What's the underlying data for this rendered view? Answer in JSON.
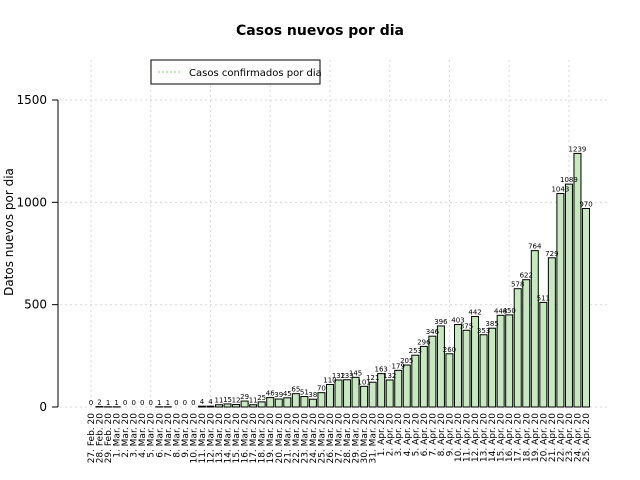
{
  "chart_data": {
    "type": "bar",
    "title": "Casos nuevos por dia",
    "xlabel": "",
    "ylabel": "Datos nuevos por dia",
    "ylim": [
      0,
      1700
    ],
    "yticks": [
      0,
      500,
      1000,
      1500
    ],
    "grid": true,
    "legend": {
      "position": "top-center",
      "entries": [
        "Casos confirmados por dia"
      ]
    },
    "colors": {
      "bar_fill": "#c7e9c0",
      "bar_stroke": "#000000",
      "legend_line": "#a1d99b",
      "grid": "#d9d9d9"
    },
    "categories": [
      "27. Feb. 20",
      "28. Feb. 20",
      "29. Feb. 20",
      "1. Mar. 20",
      "2. Mar. 20",
      "3. Mar. 20",
      "4. Mar. 20",
      "5. Mar. 20",
      "6. Mar. 20",
      "7. Mar. 20",
      "8. Mar. 20",
      "9. Mar. 20",
      "10. Mar. 20",
      "11. Mar. 20",
      "12. Mar. 20",
      "13. Mar. 20",
      "14. Mar. 20",
      "15. Mar. 20",
      "16. Mar. 20",
      "17. Mar. 20",
      "18. Mar. 20",
      "19. Mar. 20",
      "20. Mar. 20",
      "21. Mar. 20",
      "22. Mar. 20",
      "23. Mar. 20",
      "24. Mar. 20",
      "25. Mar. 20",
      "26. Mar. 20",
      "27. Mar. 20",
      "28. Mar. 20",
      "29. Mar. 20",
      "30. Mar. 20",
      "31. Mar. 20",
      "1. Apr. 20",
      "2. Apr. 20",
      "3. Apr. 20",
      "4. Apr. 20",
      "5. Apr. 20",
      "6. Apr. 20",
      "7. Apr. 20",
      "8. Apr. 20",
      "9. Apr. 20",
      "10. Apr. 20",
      "11. Apr. 20",
      "12. Apr. 20",
      "13. Apr. 20",
      "14. Apr. 20",
      "15. Apr. 20",
      "16. Apr. 20",
      "17. Apr. 20",
      "18. Apr. 20",
      "19. Apr. 20",
      "20. Apr. 20",
      "21. Apr. 20",
      "22. Apr. 20",
      "23. Apr. 20",
      "24. Apr. 20",
      "25. Apr. 20"
    ],
    "series": [
      {
        "name": "Casos confirmados por dia",
        "values": [
          0,
          2,
          1,
          1,
          0,
          0,
          0,
          0,
          1,
          1,
          0,
          0,
          0,
          4,
          4,
          11,
          15,
          12,
          29,
          11,
          25,
          46,
          39,
          45,
          65,
          51,
          38,
          70,
          110,
          132,
          133,
          145,
          101,
          121,
          163,
          132,
          179,
          205,
          253,
          296,
          346,
          396,
          260,
          403,
          375,
          442,
          353,
          385,
          448,
          450,
          578,
          622,
          764,
          511,
          729,
          1043,
          1089,
          1239,
          970
        ]
      }
    ]
  }
}
